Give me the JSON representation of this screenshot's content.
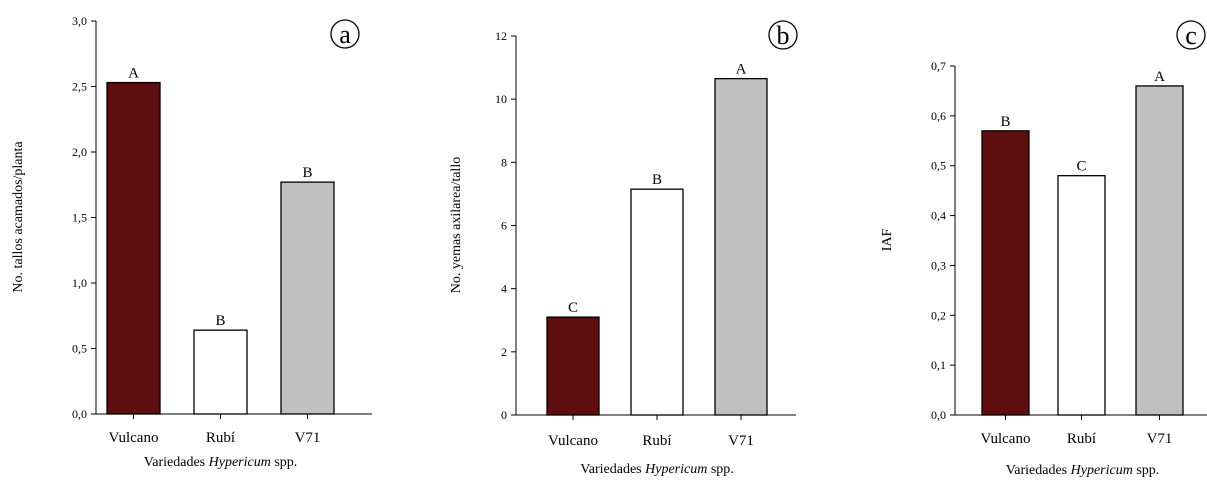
{
  "chart_data": [
    {
      "type": "bar",
      "panel": "a",
      "categories": [
        "Vulcano",
        "Rubí",
        "V71"
      ],
      "values": [
        2.53,
        0.64,
        1.77
      ],
      "letters": [
        "A",
        "B",
        "B"
      ],
      "colors": [
        "#5e0e0e",
        "#ffffff",
        "#c0c0c0"
      ],
      "ylabel": "No. tallos acamados/planta",
      "xlabel_prefix": "Variedades ",
      "xlabel_italic": "Hypericum",
      "xlabel_suffix": " spp.",
      "ylim": [
        0,
        3
      ],
      "yticks": [
        0,
        0.5,
        1,
        1.5,
        2,
        2.5,
        3
      ],
      "yticklabels": [
        "0,0",
        "0,5",
        "1,0",
        "1,5",
        "2,0",
        "2,5",
        "3,0"
      ],
      "grid": false
    },
    {
      "type": "bar",
      "panel": "b",
      "categories": [
        "Vulcano",
        "Rubí",
        "V71"
      ],
      "values": [
        3.1,
        7.15,
        10.65
      ],
      "letters": [
        "C",
        "B",
        "A"
      ],
      "colors": [
        "#5e0e0e",
        "#ffffff",
        "#c0c0c0"
      ],
      "ylabel": "No. yemas axilarea/tallo",
      "xlabel_prefix": "Variedades ",
      "xlabel_italic": "Hypericum",
      "xlabel_suffix": " spp.",
      "ylim": [
        0,
        12
      ],
      "yticks": [
        0,
        2,
        4,
        6,
        8,
        10,
        12
      ],
      "yticklabels": [
        "0",
        "2",
        "4",
        "6",
        "8",
        "10",
        "12"
      ],
      "grid": false
    },
    {
      "type": "bar",
      "panel": "c",
      "categories": [
        "Vulcano",
        "Rubí",
        "V71"
      ],
      "values": [
        0.57,
        0.48,
        0.66
      ],
      "letters": [
        "B",
        "C",
        "A"
      ],
      "colors": [
        "#5e0e0e",
        "#ffffff",
        "#c0c0c0"
      ],
      "ylabel": "IAF",
      "xlabel_prefix": "Variedades ",
      "xlabel_italic": "Hypericum",
      "xlabel_suffix": " spp.",
      "ylim": [
        0,
        0.7
      ],
      "yticks": [
        0,
        0.1,
        0.2,
        0.3,
        0.4,
        0.5,
        0.6,
        0.7
      ],
      "yticklabels": [
        "0,0",
        "0,1",
        "0,2",
        "0,3",
        "0,4",
        "0,5",
        "0,6",
        "0,7"
      ],
      "grid": false
    }
  ]
}
